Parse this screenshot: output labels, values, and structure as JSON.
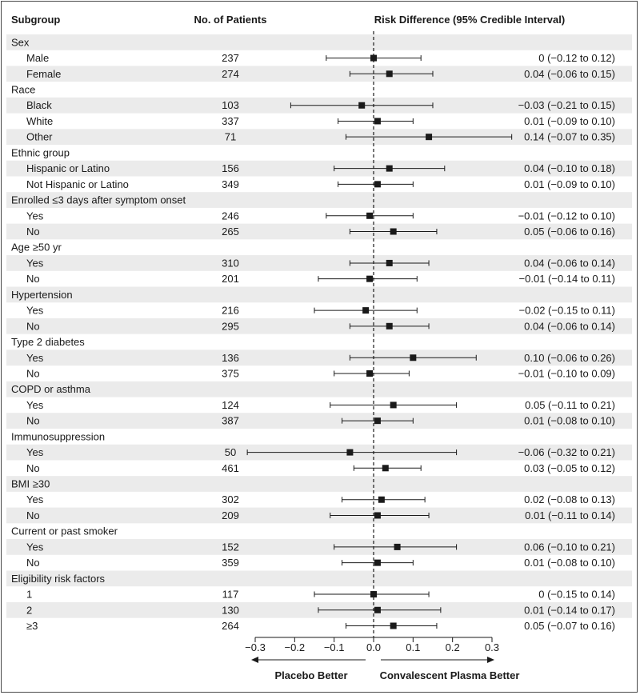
{
  "chart_data": {
    "type": "forest",
    "headers": {
      "subgroup": "Subgroup",
      "patients": "No. of Patients",
      "effect": "Risk Difference (95% Credible Interval)"
    },
    "x_axis": {
      "min": -0.3,
      "max": 0.3,
      "ticks": [
        -0.3,
        -0.2,
        -0.1,
        0.0,
        0.1,
        0.2,
        0.3
      ],
      "tick_labels": [
        "−0.3",
        "−0.2",
        "−0.1",
        "0.0",
        "0.1",
        "0.2",
        "0.3"
      ],
      "reference_line": 0
    },
    "direction_labels": {
      "left": "Placebo Better",
      "right": "Convalescent Plasma Better"
    },
    "rows": [
      {
        "type": "group",
        "label": "Sex"
      },
      {
        "type": "item",
        "label": "Male",
        "n": "237",
        "est": 0.0,
        "lo": -0.12,
        "hi": 0.12,
        "ci_text": "0 (−0.12 to 0.12)"
      },
      {
        "type": "item",
        "label": "Female",
        "n": "274",
        "est": 0.04,
        "lo": -0.06,
        "hi": 0.15,
        "ci_text": "0.04 (−0.06 to 0.15)"
      },
      {
        "type": "group",
        "label": "Race"
      },
      {
        "type": "item",
        "label": "Black",
        "n": "103",
        "est": -0.03,
        "lo": -0.21,
        "hi": 0.15,
        "ci_text": "−0.03 (−0.21 to 0.15)"
      },
      {
        "type": "item",
        "label": "White",
        "n": "337",
        "est": 0.01,
        "lo": -0.09,
        "hi": 0.1,
        "ci_text": "0.01 (−0.09 to 0.10)"
      },
      {
        "type": "item",
        "label": "Other",
        "n": "71",
        "est": 0.14,
        "lo": -0.07,
        "hi": 0.35,
        "ci_text": "0.14 (−0.07 to 0.35)"
      },
      {
        "type": "group",
        "label": "Ethnic group"
      },
      {
        "type": "item",
        "label": "Hispanic or Latino",
        "n": "156",
        "est": 0.04,
        "lo": -0.1,
        "hi": 0.18,
        "ci_text": "0.04 (−0.10 to 0.18)"
      },
      {
        "type": "item",
        "label": "Not Hispanic or Latino",
        "n": "349",
        "est": 0.01,
        "lo": -0.09,
        "hi": 0.1,
        "ci_text": "0.01 (−0.09 to 0.10)"
      },
      {
        "type": "group",
        "label": "Enrolled ≤3 days after symptom onset"
      },
      {
        "type": "item",
        "label": "Yes",
        "n": "246",
        "est": -0.01,
        "lo": -0.12,
        "hi": 0.1,
        "ci_text": "−0.01 (−0.12 to 0.10)"
      },
      {
        "type": "item",
        "label": "No",
        "n": "265",
        "est": 0.05,
        "lo": -0.06,
        "hi": 0.16,
        "ci_text": "0.05 (−0.06 to 0.16)"
      },
      {
        "type": "group",
        "label": "Age ≥50 yr"
      },
      {
        "type": "item",
        "label": "Yes",
        "n": "310",
        "est": 0.04,
        "lo": -0.06,
        "hi": 0.14,
        "ci_text": "0.04 (−0.06 to 0.14)"
      },
      {
        "type": "item",
        "label": "No",
        "n": "201",
        "est": -0.01,
        "lo": -0.14,
        "hi": 0.11,
        "ci_text": "−0.01 (−0.14 to 0.11)"
      },
      {
        "type": "group",
        "label": "Hypertension"
      },
      {
        "type": "item",
        "label": "Yes",
        "n": "216",
        "est": -0.02,
        "lo": -0.15,
        "hi": 0.11,
        "ci_text": "−0.02 (−0.15 to 0.11)"
      },
      {
        "type": "item",
        "label": "No",
        "n": "295",
        "est": 0.04,
        "lo": -0.06,
        "hi": 0.14,
        "ci_text": "0.04 (−0.06 to 0.14)"
      },
      {
        "type": "group",
        "label": "Type 2 diabetes"
      },
      {
        "type": "item",
        "label": "Yes",
        "n": "136",
        "est": 0.1,
        "lo": -0.06,
        "hi": 0.26,
        "ci_text": "0.10 (−0.06 to 0.26)"
      },
      {
        "type": "item",
        "label": "No",
        "n": "375",
        "est": -0.01,
        "lo": -0.1,
        "hi": 0.09,
        "ci_text": "−0.01 (−0.10 to 0.09)"
      },
      {
        "type": "group",
        "label": "COPD or asthma"
      },
      {
        "type": "item",
        "label": "Yes",
        "n": "124",
        "est": 0.05,
        "lo": -0.11,
        "hi": 0.21,
        "ci_text": "0.05 (−0.11 to 0.21)"
      },
      {
        "type": "item",
        "label": "No",
        "n": "387",
        "est": 0.01,
        "lo": -0.08,
        "hi": 0.1,
        "ci_text": "0.01 (−0.08 to 0.10)"
      },
      {
        "type": "group",
        "label": "Immunosuppression"
      },
      {
        "type": "item",
        "label": "Yes",
        "n": "50",
        "est": -0.06,
        "lo": -0.32,
        "hi": 0.21,
        "ci_text": "−0.06 (−0.32 to 0.21)"
      },
      {
        "type": "item",
        "label": "No",
        "n": "461",
        "est": 0.03,
        "lo": -0.05,
        "hi": 0.12,
        "ci_text": "0.03 (−0.05 to 0.12)"
      },
      {
        "type": "group",
        "label": "BMI ≥30"
      },
      {
        "type": "item",
        "label": "Yes",
        "n": "302",
        "est": 0.02,
        "lo": -0.08,
        "hi": 0.13,
        "ci_text": "0.02 (−0.08 to 0.13)"
      },
      {
        "type": "item",
        "label": "No",
        "n": "209",
        "est": 0.01,
        "lo": -0.11,
        "hi": 0.14,
        "ci_text": "0.01 (−0.11 to 0.14)"
      },
      {
        "type": "group",
        "label": "Current or past smoker"
      },
      {
        "type": "item",
        "label": "Yes",
        "n": "152",
        "est": 0.06,
        "lo": -0.1,
        "hi": 0.21,
        "ci_text": "0.06 (−0.10 to 0.21)"
      },
      {
        "type": "item",
        "label": "No",
        "n": "359",
        "est": 0.01,
        "lo": -0.08,
        "hi": 0.1,
        "ci_text": "0.01 (−0.08 to 0.10)"
      },
      {
        "type": "group",
        "label": "Eligibility risk factors"
      },
      {
        "type": "item",
        "label": "1",
        "n": "117",
        "est": 0.0,
        "lo": -0.15,
        "hi": 0.14,
        "ci_text": "0 (−0.15 to 0.14)"
      },
      {
        "type": "item",
        "label": "2",
        "n": "130",
        "est": 0.01,
        "lo": -0.14,
        "hi": 0.17,
        "ci_text": "0.01 (−0.14 to 0.17)"
      },
      {
        "type": "item",
        "label": "≥3",
        "n": "264",
        "est": 0.05,
        "lo": -0.07,
        "hi": 0.16,
        "ci_text": "0.05 (−0.07 to 0.16)"
      }
    ],
    "colors": {
      "stripe": "#ebebeb",
      "ink": "#1a1a1a"
    }
  }
}
